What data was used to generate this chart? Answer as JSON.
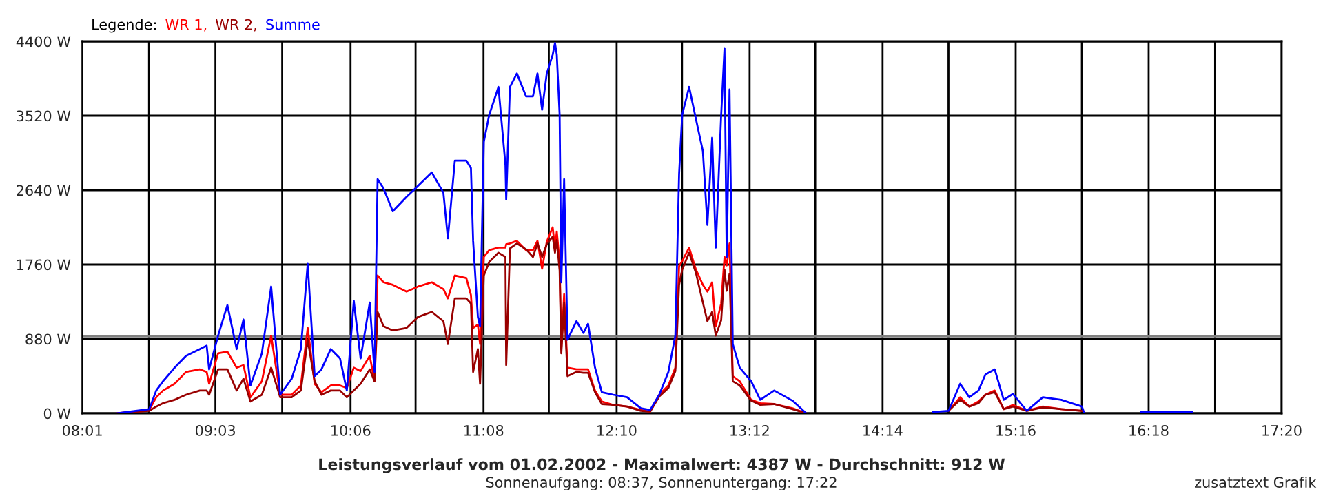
{
  "chart_data": {
    "type": "line",
    "title": "Leistungsverlauf vom 01.02.2002 - Maximalwert: 4387 W - Durchschnitt: 912 W",
    "subtitle": "Sonnenaufgang: 08:37, Sonnenuntergang: 17:22",
    "annotations": [
      "zusatztext Grafik"
    ],
    "legend_title": "Legende:",
    "legend": "top left",
    "grid": true,
    "x": [
      8.287,
      8.536,
      8.59,
      8.643,
      8.733,
      8.822,
      8.929,
      8.982,
      9.001,
      9.071,
      9.143,
      9.215,
      9.268,
      9.322,
      9.411,
      9.483,
      9.553,
      9.643,
      9.714,
      9.767,
      9.821,
      9.874,
      9.946,
      10.018,
      10.071,
      10.125,
      10.178,
      10.249,
      10.286,
      10.31,
      10.356,
      10.428,
      10.535,
      10.624,
      10.731,
      10.821,
      10.856,
      10.91,
      10.999,
      11.035,
      11.052,
      11.089,
      11.106,
      11.135,
      11.177,
      11.249,
      11.303,
      11.309,
      11.338,
      11.392,
      11.463,
      11.517,
      11.552,
      11.588,
      11.624,
      11.67,
      11.688,
      11.702,
      11.724,
      11.737,
      11.759,
      11.785,
      11.855,
      11.909,
      11.945,
      11.999,
      12.052,
      12.141,
      12.248,
      12.355,
      12.427,
      12.498,
      12.569,
      12.623,
      12.652,
      12.676,
      12.73,
      12.783,
      12.837,
      12.872,
      12.909,
      12.937,
      12.979,
      13.005,
      13.022,
      13.044,
      13.069,
      13.123,
      13.212,
      13.283,
      13.391,
      13.533,
      13.64,
      14.0,
      14.622,
      14.746,
      14.836,
      14.907,
      14.978,
      15.032,
      15.104,
      15.174,
      15.246,
      15.353,
      15.478,
      15.621,
      15.782,
      15.8,
      16.0,
      16.242,
      16.638
    ],
    "series": [
      {
        "name": "WR 1,",
        "color": "#ff0000",
        "values": [
          0,
          40,
          190,
          270,
          350,
          490,
          520,
          490,
          350,
          710,
          730,
          540,
          570,
          190,
          380,
          920,
          220,
          220,
          330,
          1010,
          350,
          250,
          330,
          330,
          300,
          540,
          500,
          680,
          380,
          1630,
          1550,
          1520,
          1440,
          1500,
          1550,
          1470,
          1360,
          1630,
          1600,
          1400,
          1010,
          1050,
          820,
          1850,
          1930,
          1960,
          1960,
          2000,
          2010,
          2040,
          1930,
          1930,
          2040,
          1710,
          2030,
          2200,
          1950,
          2150,
          1790,
          760,
          1410,
          540,
          520,
          520,
          520,
          270,
          140,
          100,
          80,
          40,
          20,
          220,
          330,
          540,
          1740,
          1800,
          1960,
          1700,
          1520,
          1440,
          1550,
          1030,
          1300,
          1850,
          1750,
          2010,
          440,
          380,
          160,
          120,
          110,
          60,
          0,
          null,
          null,
          30,
          190,
          80,
          140,
          220,
          270,
          50,
          100,
          30,
          80,
          50,
          30,
          null,
          null,
          null,
          null
        ]
      },
      {
        "name": "WR 2,",
        "color": "#990000",
        "values": [
          0,
          30,
          80,
          120,
          160,
          220,
          270,
          270,
          220,
          520,
          520,
          270,
          410,
          140,
          220,
          540,
          190,
          190,
          270,
          870,
          380,
          220,
          270,
          270,
          190,
          270,
          350,
          520,
          380,
          1200,
          1030,
          980,
          1010,
          1140,
          1200,
          1090,
          820,
          1360,
          1360,
          1300,
          490,
          760,
          350,
          1630,
          1790,
          1900,
          1850,
          570,
          1950,
          2010,
          1940,
          1850,
          2010,
          1850,
          2000,
          2090,
          1900,
          2050,
          1690,
          710,
          1310,
          440,
          490,
          480,
          480,
          250,
          110,
          100,
          80,
          30,
          20,
          200,
          300,
          500,
          1520,
          1700,
          1900,
          1660,
          1310,
          1090,
          1200,
          920,
          1100,
          1700,
          1450,
          1650,
          380,
          330,
          150,
          100,
          110,
          50,
          0,
          null,
          null,
          30,
          160,
          80,
          120,
          220,
          250,
          50,
          80,
          30,
          70,
          50,
          30,
          null,
          null,
          null,
          null
        ]
      },
      {
        "name": "Summe",
        "color": "#0000ff",
        "values": [
          0,
          50,
          270,
          380,
          540,
          680,
          760,
          800,
          520,
          920,
          1280,
          760,
          1110,
          330,
          710,
          1500,
          220,
          410,
          760,
          1770,
          440,
          520,
          760,
          650,
          270,
          1330,
          650,
          1310,
          490,
          2770,
          2660,
          2390,
          2560,
          2690,
          2850,
          2610,
          2070,
          2990,
          2990,
          2900,
          2040,
          1140,
          1030,
          3210,
          3530,
          3860,
          2940,
          2530,
          3860,
          4020,
          3750,
          3750,
          4020,
          3590,
          4020,
          4240,
          4380,
          4240,
          3530,
          1550,
          2770,
          870,
          1090,
          950,
          1060,
          540,
          250,
          220,
          190,
          60,
          40,
          220,
          490,
          920,
          2830,
          3530,
          3860,
          3480,
          3100,
          2230,
          3260,
          1960,
          3530,
          4320,
          1850,
          3830,
          820,
          540,
          380,
          160,
          270,
          150,
          0,
          null,
          16,
          30,
          350,
          190,
          270,
          460,
          520,
          160,
          230,
          30,
          190,
          160,
          80,
          0,
          null,
          16,
          16
        ]
      }
    ],
    "xlim": [
      8.0167,
      17.3333
    ],
    "xticks": [
      {
        "value": 8.0167,
        "label": "08:01"
      },
      {
        "value": 8.534,
        "label": null
      },
      {
        "value": 9.05,
        "label": "09:03"
      },
      {
        "value": 9.569,
        "label": null
      },
      {
        "value": 10.1,
        "label": "10:06"
      },
      {
        "value": 10.605,
        "label": null
      },
      {
        "value": 11.133,
        "label": "11:08"
      },
      {
        "value": 11.64,
        "label": null
      },
      {
        "value": 12.167,
        "label": "12:10"
      },
      {
        "value": 12.675,
        "label": null
      },
      {
        "value": 13.2,
        "label": "13:12"
      },
      {
        "value": 13.71,
        "label": null
      },
      {
        "value": 14.233,
        "label": "14:14"
      },
      {
        "value": 14.745,
        "label": null
      },
      {
        "value": 15.267,
        "label": "15:16"
      },
      {
        "value": 15.781,
        "label": null
      },
      {
        "value": 16.3,
        "label": "16:18"
      },
      {
        "value": 16.816,
        "label": null
      },
      {
        "value": 17.3333,
        "label": "17:20"
      }
    ],
    "ylim": [
      0,
      4400
    ],
    "yticks": [
      {
        "value": 0,
        "label": "0 W"
      },
      {
        "value": 880,
        "label": "880 W"
      },
      {
        "value": 1760,
        "label": "1760 W"
      },
      {
        "value": 2640,
        "label": "2640 W"
      },
      {
        "value": 3520,
        "label": "3520 W"
      },
      {
        "value": 4400,
        "label": "4400 W"
      }
    ],
    "ref_lines": [
      {
        "axis": "y",
        "value": 912,
        "color": "#808080",
        "line_style": "solid"
      }
    ]
  }
}
